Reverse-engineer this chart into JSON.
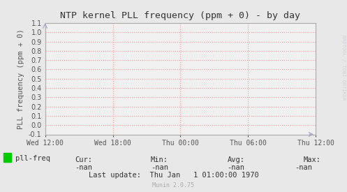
{
  "title": "NTP kernel PLL frequency (ppm + 0) - by day",
  "ylabel": "PLL frequency (ppm + 0)",
  "ylim": [
    -0.1,
    1.1
  ],
  "yticks": [
    -0.1,
    0.0,
    0.1,
    0.2,
    0.3,
    0.4,
    0.5,
    0.6,
    0.7,
    0.8,
    0.9,
    1.0,
    1.1
  ],
  "xtick_labels": [
    "Wed 12:00",
    "Wed 18:00",
    "Thu 00:00",
    "Thu 06:00",
    "Thu 12:00"
  ],
  "background_color": "#e8e8e8",
  "plot_bg_color": "#f0f0f0",
  "grid_color": "#ff9999",
  "grid_style": "dotted",
  "border_color": "#aaaaaa",
  "title_color": "#333333",
  "label_color": "#555555",
  "tick_color": "#555555",
  "arrow_color": "#aaaacc",
  "legend_label": "pll-freq",
  "legend_color": "#00cc00",
  "cur_label": "Cur:",
  "cur_value": "-nan",
  "min_label": "Min:",
  "min_value": "-nan",
  "avg_label": "Avg:",
  "avg_value": "-nan",
  "max_label": "Max:",
  "max_value": "-nan",
  "last_update": "Last update:  Thu Jan   1 01:00:00 1970",
  "munin_version": "Munin 2.0.75",
  "watermark": "RRDTOOL / TOBI OETIKER",
  "font_family": "DejaVu Sans Mono"
}
